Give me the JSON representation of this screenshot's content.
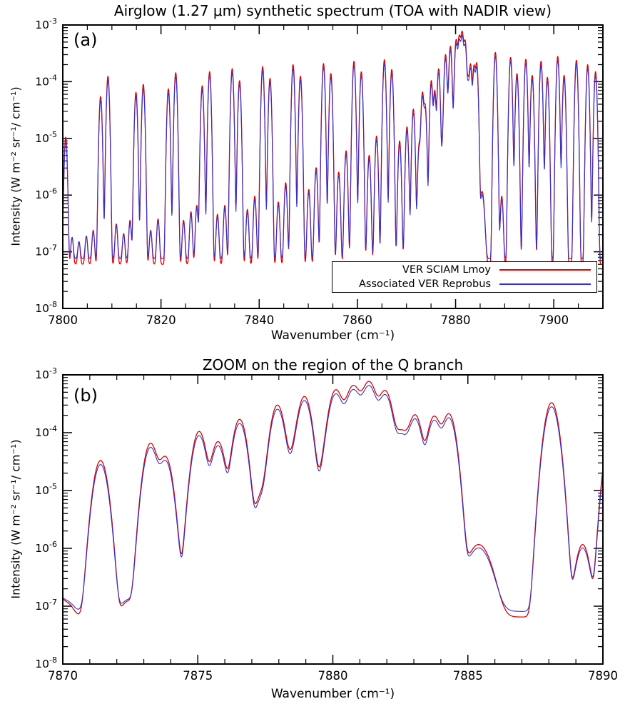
{
  "figure": {
    "background": "#ffffff",
    "frame_color": "#000000"
  },
  "chart_data": [
    {
      "id": "a",
      "type": "line",
      "panel_label": "(a)",
      "title": "Airglow (1.27 μm) synthetic spectrum (TOA with NADIR view)",
      "xlabel": "Wavenumber (cm⁻¹)",
      "ylabel": "Intensity (W m⁻² sr⁻¹/ cm⁻¹)",
      "xlim": [
        7800,
        7910
      ],
      "ylog": true,
      "ylim": [
        1e-08,
        0.001
      ],
      "x_major_ticks": [
        7800,
        7820,
        7840,
        7860,
        7880,
        7900
      ],
      "x_minor_step": 5,
      "y_tick_exponents": [
        -8,
        -7,
        -6,
        -5,
        -4,
        -3
      ],
      "grid": false,
      "legend": {
        "position": "bottom-right-inside",
        "entries": [
          "VER SCIAM Lmoy",
          "Associated VER Reprobus"
        ]
      },
      "series": [
        {
          "name": "VER SCIAM Lmoy",
          "color": "#dd0000",
          "scale": 1.0,
          "floor_factor": 1.0
        },
        {
          "name": "Associated VER Reprobus",
          "color": "#3333cc",
          "scale": 0.85,
          "floor_factor": 1.25
        }
      ],
      "baseline": 6e-08,
      "default_sigma": 0.3,
      "samples": 1600,
      "lines": [
        [
          7800.6,
          1.05e-05
        ],
        [
          7801.9,
          1.2e-07
        ],
        [
          7803.3,
          9e-08
        ],
        [
          7804.8,
          1.3e-07
        ],
        [
          7806.2,
          1.8e-07
        ],
        [
          7807.7,
          5.5e-05
        ],
        [
          7809.2,
          0.000125
        ],
        [
          7810.9,
          2.5e-07
        ],
        [
          7812.4,
          1.5e-07
        ],
        [
          7813.7,
          3e-07
        ],
        [
          7814.9,
          6.5e-05
        ],
        [
          7816.4,
          9e-05
        ],
        [
          7817.9,
          1.8e-07
        ],
        [
          7819.4,
          3.2e-07
        ],
        [
          7821.5,
          7.5e-05
        ],
        [
          7823.0,
          0.000145
        ],
        [
          7824.6,
          3e-07
        ],
        [
          7826.1,
          4.5e-07
        ],
        [
          7827.3,
          6e-07
        ],
        [
          7828.4,
          8.5e-05
        ],
        [
          7829.9,
          0.00015
        ],
        [
          7831.5,
          4e-07
        ],
        [
          7833.0,
          6e-07
        ],
        [
          7834.5,
          0.00017
        ],
        [
          7836.0,
          0.000105
        ],
        [
          7837.6,
          5e-07
        ],
        [
          7839.1,
          9e-07
        ],
        [
          7840.7,
          0.000185
        ],
        [
          7842.2,
          0.000115
        ],
        [
          7843.9,
          7e-07
        ],
        [
          7845.4,
          1.6e-06
        ],
        [
          7846.9,
          0.0002
        ],
        [
          7848.4,
          0.000125
        ],
        [
          7850.1,
          1.2e-06
        ],
        [
          7851.6,
          3e-06
        ],
        [
          7853.1,
          0.00021
        ],
        [
          7854.6,
          0.00014
        ],
        [
          7856.2,
          2.5e-06
        ],
        [
          7857.7,
          6e-06
        ],
        [
          7859.3,
          0.00023
        ],
        [
          7860.8,
          0.00015
        ],
        [
          7862.4,
          5e-06
        ],
        [
          7863.9,
          1.1e-05
        ],
        [
          7865.5,
          0.000245
        ],
        [
          7867.0,
          0.000165
        ],
        [
          7868.6,
          9e-06
        ],
        [
          7870.1,
          1.6e-05
        ],
        [
          7871.4,
          3.3e-05
        ],
        [
          7872.6,
          8e-06
        ],
        [
          7873.25,
          6.5e-05
        ],
        [
          7873.8,
          3.8e-05
        ],
        [
          7875.05,
          0.000105
        ],
        [
          7875.75,
          7e-05
        ],
        [
          7876.55,
          0.00017
        ],
        [
          7877.35,
          8e-06
        ],
        [
          7877.95,
          0.0003
        ],
        [
          7878.5,
          3e-05
        ],
        [
          7878.95,
          0.00042
        ],
        [
          7880.1,
          0.00046
        ],
        [
          7880.75,
          0.00042
        ],
        [
          7881.35,
          0.00055
        ],
        [
          7881.95,
          0.00045
        ],
        [
          7882.55,
          9e-05
        ],
        [
          7883.05,
          0.0002
        ],
        [
          7883.75,
          0.00019
        ],
        [
          7884.3,
          0.00021
        ],
        [
          7881.0,
          0.00025,
          0.9
        ],
        [
          7885.4,
          1.1e-06,
          0.5
        ],
        [
          7888.1,
          0.00033
        ],
        [
          7889.4,
          9e-07
        ],
        [
          7891.2,
          0.00027
        ],
        [
          7892.5,
          0.00014
        ],
        [
          7894.3,
          0.00025
        ],
        [
          7895.6,
          0.00013
        ],
        [
          7897.4,
          0.00023
        ],
        [
          7898.7,
          0.00012
        ],
        [
          7900.8,
          0.00028
        ],
        [
          7902.1,
          0.00013
        ],
        [
          7904.6,
          0.00024
        ],
        [
          7906.9,
          0.0002
        ],
        [
          7908.5,
          0.00015
        ]
      ]
    },
    {
      "id": "b",
      "type": "line",
      "panel_label": "(b)",
      "title": "ZOOM on the region of the Q branch",
      "xlabel": "Wavenumber (cm⁻¹)",
      "ylabel": "Intensity (W m⁻² sr⁻¹/ cm⁻¹)",
      "xlim": [
        7870,
        7890
      ],
      "ylog": true,
      "ylim": [
        1e-08,
        0.001
      ],
      "x_major_ticks": [
        7870,
        7875,
        7880,
        7885,
        7890
      ],
      "x_minor_step": 1,
      "y_tick_exponents": [
        -8,
        -7,
        -6,
        -5,
        -4,
        -3
      ],
      "grid": false,
      "legend": null,
      "series": [
        {
          "name": "VER SCIAM Lmoy",
          "color": "#dd0000",
          "scale": 1.0,
          "floor_factor": 1.0
        },
        {
          "name": "Associated VER Reprobus",
          "color": "#3333cc",
          "scale": 0.85,
          "floor_factor": 1.25
        }
      ],
      "baseline": 6.5e-08,
      "default_sigma": 0.27,
      "samples": 1100,
      "lines": [
        [
          7869.8,
          8e-08
        ],
        [
          7870.2,
          4e-08
        ],
        [
          7871.4,
          3.3e-05
        ],
        [
          7872.4,
          5.5e-08
        ],
        [
          7873.25,
          6.5e-05
        ],
        [
          7873.8,
          3.8e-05
        ],
        [
          7874.4,
          1.5e-07
        ],
        [
          7875.05,
          0.000105
        ],
        [
          7875.75,
          7e-05
        ],
        [
          7876.55,
          0.00017
        ],
        [
          7877.35,
          8e-06
        ],
        [
          7877.95,
          0.0003
        ],
        [
          7878.5,
          3e-05
        ],
        [
          7878.95,
          0.00042
        ],
        [
          7880.1,
          0.00046
        ],
        [
          7880.75,
          0.00042
        ],
        [
          7881.35,
          0.00055
        ],
        [
          7881.95,
          0.00045
        ],
        [
          7882.55,
          9e-05
        ],
        [
          7883.05,
          0.0002
        ],
        [
          7883.75,
          0.00019
        ],
        [
          7884.3,
          0.00021
        ],
        [
          7881.0,
          0.00025,
          0.9
        ],
        [
          7885.4,
          1.1e-06,
          0.5
        ],
        [
          7888.1,
          0.00033
        ],
        [
          7889.25,
          1.1e-06
        ],
        [
          7890.35,
          0.00013
        ]
      ]
    }
  ]
}
